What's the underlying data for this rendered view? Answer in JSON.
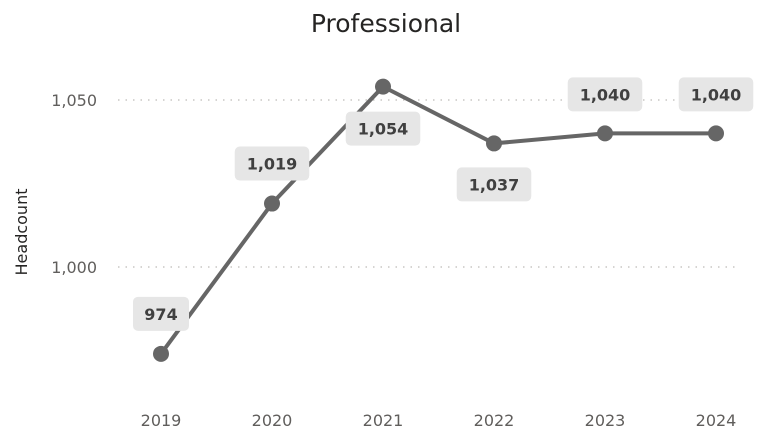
{
  "chart_data": {
    "type": "line",
    "title": "Professional",
    "ylabel": "Headcount",
    "xlabel": "",
    "categories": [
      "2019",
      "2020",
      "2021",
      "2022",
      "2023",
      "2024"
    ],
    "series": [
      {
        "values": [
          974,
          1019,
          1054,
          1037,
          1040,
          1040
        ],
        "labels": [
          "974",
          "1,019",
          "1,054",
          "1,037",
          "1,040",
          "1,040"
        ],
        "color": "#666666"
      }
    ],
    "yticks": [
      {
        "value": 1000,
        "label": "1,000"
      },
      {
        "value": 1050,
        "label": "1,050"
      }
    ],
    "ylim": [
      950,
      1060
    ],
    "grid": true,
    "data_label_background": "#e6e6e6"
  }
}
